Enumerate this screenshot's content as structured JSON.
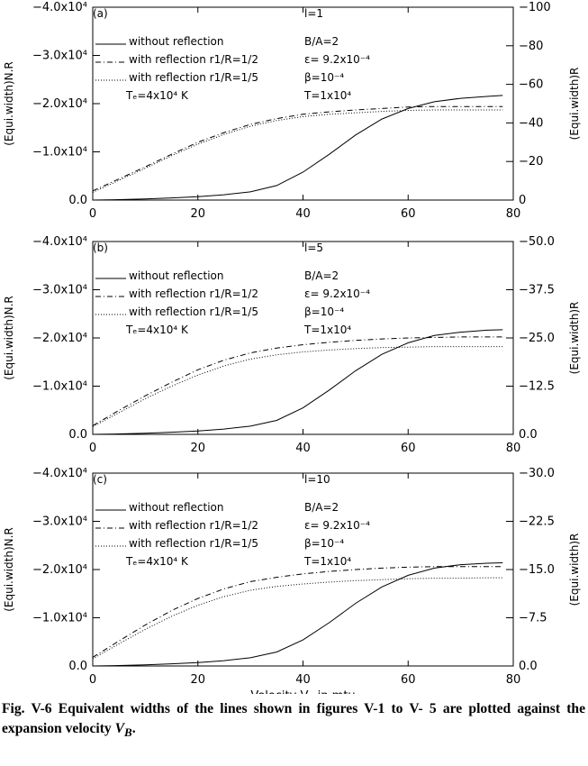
{
  "chart_data": [
    {
      "type": "line",
      "annotations": [
        "(a)",
        "l=1",
        "B/A=2",
        "ε= 9.2x10⁻⁴",
        "β=10⁻⁴",
        "T=1x10⁴",
        "Tₑ=4x10⁴ K"
      ],
      "ylabel": "(Equi.width)N.R",
      "y2label": "(Equi.width)R",
      "x": [
        0,
        5,
        10,
        15,
        20,
        25,
        30,
        35,
        40,
        45,
        50,
        55,
        60,
        65,
        70,
        75,
        78
      ],
      "xlim": [
        0,
        80
      ],
      "xticks": [
        0,
        20,
        40,
        60,
        80
      ],
      "ylim": [
        0,
        -40000
      ],
      "yticks": [
        {
          "value": -40000,
          "label": "−4.0x10⁴"
        },
        {
          "value": -30000,
          "label": "−3.0x10⁴"
        },
        {
          "value": -20000,
          "label": "−2.0x10⁴"
        },
        {
          "value": -10000,
          "label": "−1.0x10⁴"
        },
        {
          "value": 0,
          "label": "0.0"
        }
      ],
      "y2lim": [
        0,
        -100
      ],
      "y2ticks": [
        {
          "value": -100,
          "label": "−100"
        },
        {
          "value": -80,
          "label": "−80"
        },
        {
          "value": -60,
          "label": "−60"
        },
        {
          "value": -40,
          "label": "−40"
        },
        {
          "value": -20,
          "label": "−20"
        },
        0
      ],
      "series": [
        {
          "name": "without reflection",
          "color": "#000000",
          "dash": "none",
          "values": [
            0,
            -100,
            -250,
            -450,
            -700,
            -1100,
            -1700,
            -3000,
            -5800,
            -9500,
            -13500,
            -16800,
            -19000,
            -20400,
            -21100,
            -21500,
            -21700
          ]
        },
        {
          "name": "with reflection r1/R=1/2",
          "color": "#000000",
          "dash": "6,3,1,3",
          "values": [
            -1900,
            -4400,
            -6900,
            -9500,
            -12000,
            -14000,
            -15700,
            -16900,
            -17800,
            -18300,
            -18700,
            -19000,
            -19300,
            -19400,
            -19400,
            -19400,
            -19400
          ]
        },
        {
          "name": "with reflection r1/R=1/5",
          "color": "#000000",
          "dash": "1,2",
          "values": [
            -1600,
            -4100,
            -6600,
            -9200,
            -11600,
            -13600,
            -15300,
            -16500,
            -17300,
            -17800,
            -18100,
            -18400,
            -18600,
            -18700,
            -18700,
            -18700,
            -18700
          ]
        }
      ]
    },
    {
      "type": "line",
      "annotations": [
        "(b)",
        "l=5",
        "B/A=2",
        "ε= 9.2x10⁻⁴",
        "β=10⁻⁴",
        "T=1x10⁴",
        "Tₑ=4x10⁴ K"
      ],
      "ylabel": "(Equi.width)N.R",
      "y2label": "(Equi.width)R",
      "x": [
        0,
        5,
        10,
        15,
        20,
        25,
        30,
        35,
        40,
        45,
        50,
        55,
        60,
        65,
        70,
        75,
        78
      ],
      "xlim": [
        0,
        80
      ],
      "xticks": [
        0,
        20,
        40,
        60,
        80
      ],
      "ylim": [
        0,
        -40000
      ],
      "yticks": [
        {
          "value": -40000,
          "label": "−4.0x10⁴"
        },
        {
          "value": -30000,
          "label": "−3.0x10⁴"
        },
        {
          "value": -20000,
          "label": "−2.0x10⁴"
        },
        {
          "value": -10000,
          "label": "−1.0x10⁴"
        },
        {
          "value": 0,
          "label": "0.0"
        }
      ],
      "y2lim": [
        0,
        -50
      ],
      "y2ticks": [
        {
          "value": -50,
          "label": "−50.0"
        },
        {
          "value": -37.5,
          "label": "−37.5"
        },
        {
          "value": -25,
          "label": "−25.0"
        },
        {
          "value": -12.5,
          "label": "−12.5"
        },
        {
          "value": 0,
          "label": "0.0"
        }
      ],
      "series": [
        {
          "name": "without reflection",
          "color": "#000000",
          "dash": "none",
          "values": [
            0,
            -100,
            -250,
            -450,
            -700,
            -1100,
            -1700,
            -2900,
            -5500,
            -9200,
            -13200,
            -16600,
            -19000,
            -20500,
            -21200,
            -21600,
            -21700
          ]
        },
        {
          "name": "with reflection r1/R=1/2",
          "color": "#000000",
          "dash": "6,3,1,3",
          "values": [
            -1800,
            -5000,
            -8000,
            -10800,
            -13400,
            -15400,
            -16900,
            -17900,
            -18600,
            -19100,
            -19500,
            -19800,
            -20000,
            -20100,
            -20200,
            -20200,
            -20200
          ]
        },
        {
          "name": "with reflection r1/R=1/5",
          "color": "#000000",
          "dash": "1,2",
          "values": [
            -1600,
            -4500,
            -7400,
            -10000,
            -12300,
            -14200,
            -15600,
            -16500,
            -17100,
            -17500,
            -17800,
            -18000,
            -18100,
            -18200,
            -18200,
            -18200,
            -18200
          ]
        }
      ]
    },
    {
      "type": "line",
      "annotations": [
        "(c)",
        "l=10",
        "B/A=2",
        "ε= 9.2x10⁻⁴",
        "β=10⁻⁴",
        "T=1x10⁴",
        "Tₑ=4x10⁴ K"
      ],
      "ylabel": "(Equi.width)N.R",
      "y2label": "(Equi.width)R",
      "xlabel": "Velocity V_B in mtu",
      "x": [
        0,
        5,
        10,
        15,
        20,
        25,
        30,
        35,
        40,
        45,
        50,
        55,
        60,
        65,
        70,
        75,
        78
      ],
      "xlim": [
        0,
        80
      ],
      "xticks": [
        0,
        20,
        40,
        60,
        80
      ],
      "ylim": [
        0,
        -40000
      ],
      "yticks": [
        {
          "value": -40000,
          "label": "−4.0x10⁴"
        },
        {
          "value": -30000,
          "label": "−3.0x10⁴"
        },
        {
          "value": -20000,
          "label": "−2.0x10⁴"
        },
        {
          "value": -10000,
          "label": "−1.0x10⁴"
        },
        {
          "value": 0,
          "label": "0.0"
        }
      ],
      "y2lim": [
        0,
        -30
      ],
      "y2ticks": [
        {
          "value": -30,
          "label": "−30.0"
        },
        {
          "value": -22.5,
          "label": "−22.5"
        },
        {
          "value": -15,
          "label": "−15.0"
        },
        {
          "value": -7.5,
          "label": "−7.5"
        },
        {
          "value": 0,
          "label": "0.0"
        }
      ],
      "series": [
        {
          "name": "without reflection",
          "color": "#000000",
          "dash": "none",
          "values": [
            0,
            -100,
            -250,
            -450,
            -700,
            -1100,
            -1700,
            -2900,
            -5400,
            -9000,
            -13000,
            -16400,
            -18800,
            -20300,
            -21000,
            -21300,
            -21400
          ]
        },
        {
          "name": "with reflection r1/R=1/2",
          "color": "#000000",
          "dash": "6,3,1,3",
          "values": [
            -1800,
            -5200,
            -8500,
            -11500,
            -14000,
            -16000,
            -17500,
            -18400,
            -19100,
            -19600,
            -20000,
            -20300,
            -20500,
            -20600,
            -20600,
            -20600,
            -20600
          ]
        },
        {
          "name": "with reflection r1/R=1/5",
          "color": "#000000",
          "dash": "1,2",
          "values": [
            -1500,
            -4600,
            -7600,
            -10300,
            -12600,
            -14400,
            -15700,
            -16500,
            -17000,
            -17400,
            -17700,
            -17900,
            -18100,
            -18200,
            -18200,
            -18300,
            -18300
          ]
        }
      ]
    }
  ],
  "caption": "Fig. V-6 Equivalent widths of the lines shown in figures V-1 to V- 5 are plotted against the expansion velocity V_B."
}
